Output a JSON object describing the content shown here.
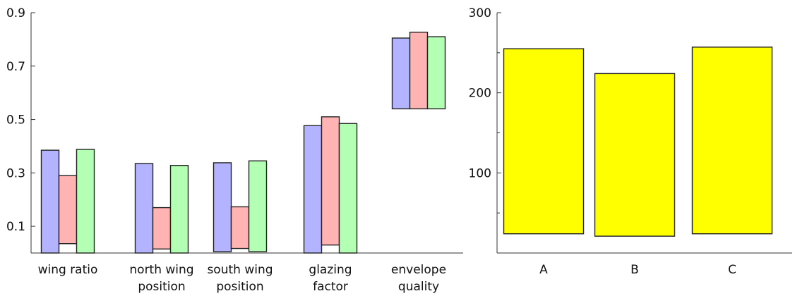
{
  "chart_data": [
    {
      "type": "bar",
      "subtype": "floating-range",
      "categories": [
        [
          "wing ratio"
        ],
        [
          "north wing",
          "position"
        ],
        [
          "south wing",
          "position"
        ],
        [
          "glazing",
          "factor"
        ],
        [
          "envelope",
          "quality"
        ]
      ],
      "ylim": [
        0,
        0.9
      ],
      "yticks": [
        "0.1",
        "0.3",
        "0.5",
        "0.7",
        "0.9"
      ],
      "ytick_values": [
        0.1,
        0.3,
        0.5,
        0.7,
        0.9
      ],
      "grid": false,
      "legend": "none",
      "series": [
        {
          "color": "#b3b3ff",
          "ranges": [
            [
              0.0,
              0.385
            ],
            [
              0.0,
              0.335
            ],
            [
              0.005,
              0.338
            ],
            [
              0.0,
              0.477
            ],
            [
              0.54,
              0.805
            ]
          ]
        },
        {
          "color": "#ffb3b3",
          "ranges": [
            [
              0.035,
              0.29
            ],
            [
              0.015,
              0.17
            ],
            [
              0.017,
              0.173
            ],
            [
              0.03,
              0.51
            ],
            [
              0.54,
              0.827
            ]
          ]
        },
        {
          "color": "#b3ffb3",
          "ranges": [
            [
              0.0,
              0.388
            ],
            [
              0.0,
              0.328
            ],
            [
              0.005,
              0.345
            ],
            [
              0.0,
              0.485
            ],
            [
              0.54,
              0.81
            ]
          ]
        }
      ]
    },
    {
      "type": "bar",
      "subtype": "floating-range",
      "categories": [
        "A",
        "B",
        "C"
      ],
      "ylim": [
        0,
        300
      ],
      "yticks": [
        "100",
        "200",
        "300"
      ],
      "ytick_values": [
        100,
        200,
        300
      ],
      "grid": false,
      "legend": "none",
      "series": [
        {
          "color": "#ffff00",
          "ranges": [
            [
              24,
              255
            ],
            [
              21,
              224
            ],
            [
              24,
              257
            ]
          ]
        }
      ]
    }
  ]
}
